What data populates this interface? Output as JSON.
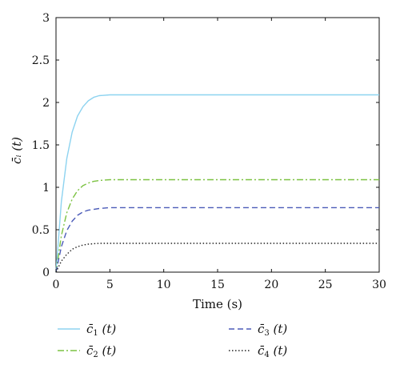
{
  "chart_data": {
    "type": "line",
    "xlabel": "Time (s)",
    "ylabel": "c̄ᵢ (t)",
    "xlim": [
      0,
      30
    ],
    "ylim": [
      0,
      3
    ],
    "xticks": [
      0,
      5,
      10,
      15,
      20,
      25,
      30
    ],
    "yticks": [
      0,
      0.5,
      1,
      1.5,
      2,
      2.5,
      3
    ],
    "xtick_labels": [
      "0",
      "5",
      "10",
      "15",
      "20",
      "25",
      "30"
    ],
    "ytick_labels": [
      "0",
      "0.5",
      "1",
      "1.5",
      "2",
      "2.5",
      "3"
    ],
    "grid": false,
    "legend_position": "below",
    "series": [
      {
        "name": "c̄₁ (t)",
        "legend_base": "c̄",
        "legend_sub": "1",
        "legend_arg": "(t)",
        "color": "#8dd3f0",
        "dash": "solid",
        "x": [
          0,
          0.5,
          1,
          1.5,
          2,
          2.5,
          3,
          3.5,
          4,
          5,
          6,
          8,
          10,
          15,
          20,
          25,
          30
        ],
        "y": [
          0,
          0.83,
          1.34,
          1.65,
          1.84,
          1.95,
          2.02,
          2.06,
          2.08,
          2.09,
          2.09,
          2.09,
          2.09,
          2.09,
          2.09,
          2.09,
          2.09
        ]
      },
      {
        "name": "c̄₂ (t)",
        "legend_base": "c̄",
        "legend_sub": "2",
        "legend_arg": "(t)",
        "color": "#7cc242",
        "dash": "dashdot",
        "x": [
          0,
          0.5,
          1,
          1.5,
          2,
          2.5,
          3,
          3.5,
          4,
          5,
          6,
          8,
          10,
          15,
          20,
          25,
          30
        ],
        "y": [
          0,
          0.43,
          0.7,
          0.86,
          0.96,
          1.02,
          1.05,
          1.07,
          1.08,
          1.09,
          1.09,
          1.09,
          1.09,
          1.09,
          1.09,
          1.09,
          1.09
        ]
      },
      {
        "name": "c̄₃ (t)",
        "legend_base": "c̄",
        "legend_sub": "3",
        "legend_arg": "(t)",
        "color": "#4b5bb8",
        "dash": "dashed",
        "x": [
          0,
          0.5,
          1,
          1.5,
          2,
          2.5,
          3,
          3.5,
          4,
          5,
          6,
          8,
          10,
          15,
          20,
          25,
          30
        ],
        "y": [
          0,
          0.3,
          0.49,
          0.6,
          0.67,
          0.71,
          0.73,
          0.74,
          0.75,
          0.76,
          0.76,
          0.76,
          0.76,
          0.76,
          0.76,
          0.76,
          0.76
        ]
      },
      {
        "name": "c̄₄ (t)",
        "legend_base": "c̄",
        "legend_sub": "4",
        "legend_arg": "(t)",
        "color": "#222222",
        "dash": "dotted",
        "x": [
          0,
          0.5,
          1,
          1.5,
          2,
          2.5,
          3,
          3.5,
          4,
          5,
          6,
          8,
          10,
          15,
          20,
          25,
          30
        ],
        "y": [
          0,
          0.13,
          0.21,
          0.27,
          0.3,
          0.32,
          0.33,
          0.335,
          0.34,
          0.34,
          0.34,
          0.34,
          0.34,
          0.34,
          0.34,
          0.34,
          0.34
        ]
      }
    ]
  }
}
